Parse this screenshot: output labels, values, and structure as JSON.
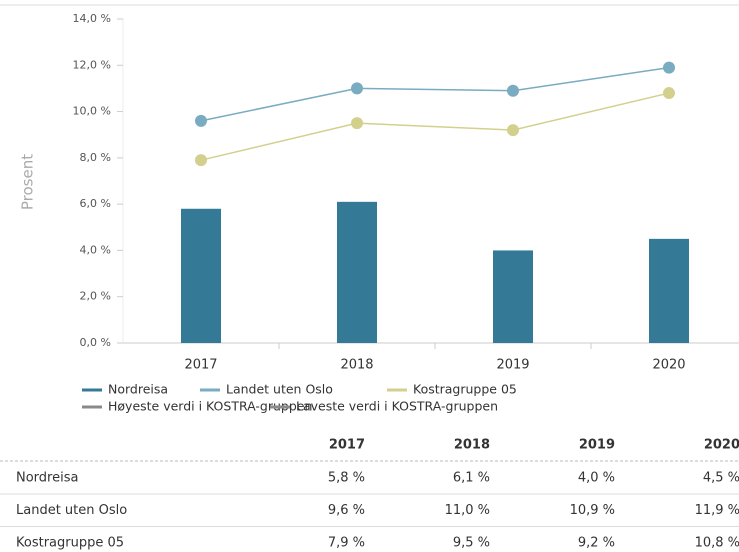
{
  "chart_data": {
    "type": "bar",
    "ylabel": "Prosent",
    "categories": [
      "2017",
      "2018",
      "2019",
      "2020"
    ],
    "ylim": [
      0,
      14
    ],
    "yticks": [
      {
        "value": 0,
        "label": "0,0 %"
      },
      {
        "value": 2,
        "label": "2,0 %"
      },
      {
        "value": 4,
        "label": "4,0 %"
      },
      {
        "value": 6,
        "label": "6,0 %"
      },
      {
        "value": 8,
        "label": "8,0 %"
      },
      {
        "value": 10,
        "label": "10,0 %"
      },
      {
        "value": 12,
        "label": "12,0 %"
      },
      {
        "value": 14,
        "label": "14,0 %"
      }
    ],
    "series": [
      {
        "name": "Nordreisa",
        "type": "bar",
        "color": "#347a97",
        "values": [
          5.8,
          6.1,
          4.0,
          4.5
        ]
      },
      {
        "name": "Landet uten Oslo",
        "type": "line",
        "color": "#79abc1",
        "values": [
          9.6,
          11.0,
          10.9,
          11.9
        ]
      },
      {
        "name": "Kostragruppe 05",
        "type": "line",
        "color": "#d3d08e",
        "values": [
          7.9,
          9.5,
          9.2,
          10.8
        ]
      }
    ],
    "legend_extra": [
      {
        "name": "Høyeste verdi i KOSTRA-gruppen",
        "color": "#8a8a8a"
      },
      {
        "name": "Laveste verdi i KOSTRA-gruppen",
        "color": "#8a8a8a"
      }
    ]
  },
  "table": {
    "columns": [
      "2017",
      "2018",
      "2019",
      "2020"
    ],
    "rows": [
      [
        "Nordreisa",
        "5,8 %",
        "6,1 %",
        "4,0 %",
        "4,5 %"
      ],
      [
        "Landet uten Oslo",
        "9,6 %",
        "11,0 %",
        "10,9 %",
        "11,9 %"
      ],
      [
        "Kostragruppe 05",
        "7,9 %",
        "9,5 %",
        "9,2 %",
        "10,8 %"
      ]
    ]
  }
}
